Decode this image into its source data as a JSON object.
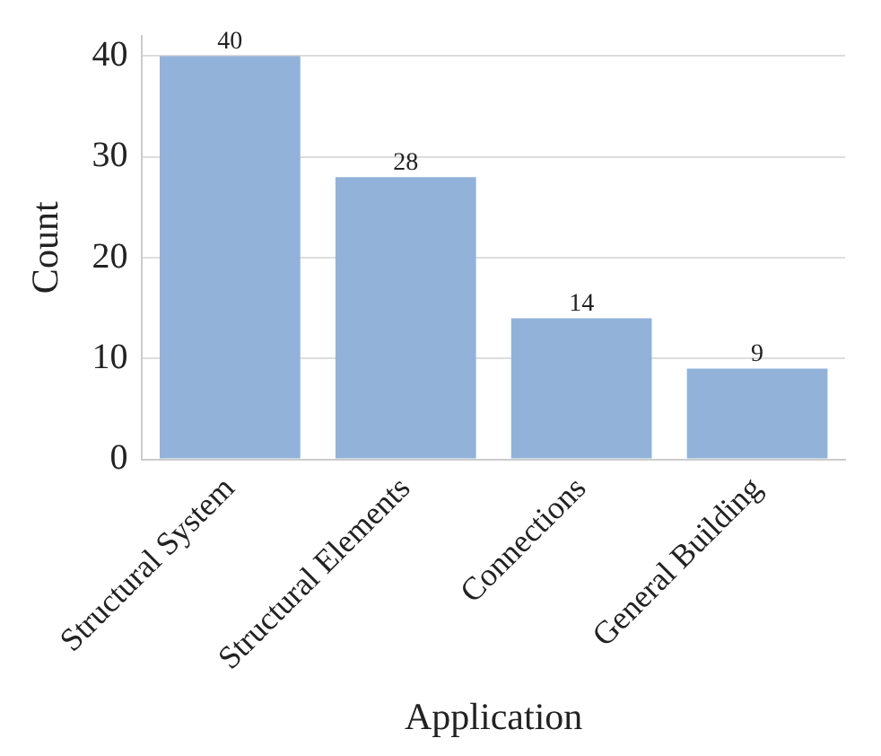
{
  "chart_data": {
    "type": "bar",
    "xlabel": "Application",
    "ylabel": "Count",
    "categories": [
      "Structural System",
      "Structural Elements",
      "Connections",
      "General Building"
    ],
    "values": [
      40,
      28,
      14,
      9
    ],
    "color": "#92b2d9",
    "ylim": [
      0,
      42
    ],
    "yticks": [
      0,
      10,
      20,
      30,
      40
    ],
    "grid": "y",
    "legend": false,
    "data_labels": true
  }
}
